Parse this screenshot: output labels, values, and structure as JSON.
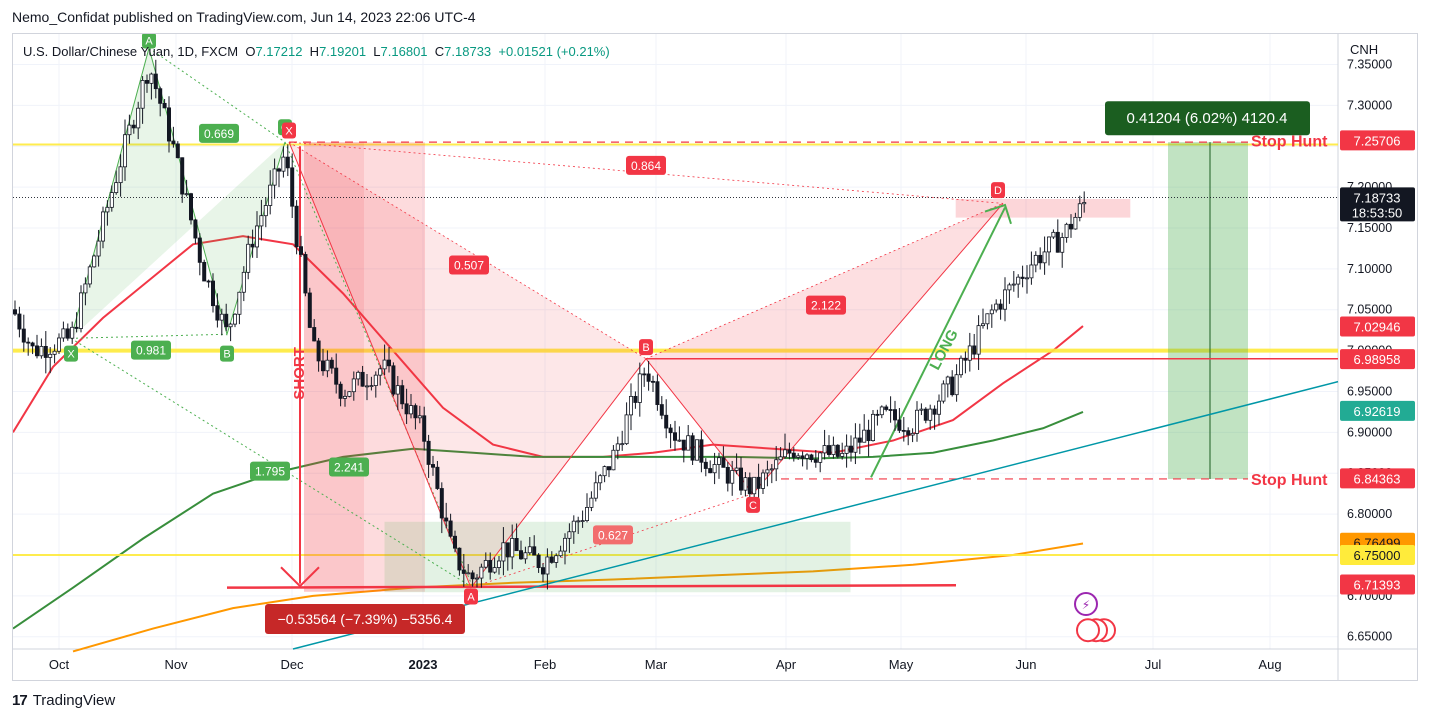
{
  "publisher_line": "Nemo_Confidat published on TradingView.com, Jun 14, 2023 22:06 UTC-4",
  "brand": {
    "logo_glyph": "17",
    "name": "TradingView"
  },
  "legend": {
    "symbol": "U.S. Dollar/Chinese Yuan, 1D, FXCM",
    "open_label": "O",
    "open": "7.17212",
    "high_label": "H",
    "high": "7.19201",
    "low_label": "L",
    "low": "7.16801",
    "close_label": "C",
    "close": "7.18733",
    "change": "+0.01521 (+0.21%)"
  },
  "currency": "CNH",
  "chart_data": {
    "type": "candlestick",
    "x_months": [
      "Oct",
      "Nov",
      "Dec",
      "2023",
      "Feb",
      "Mar",
      "Apr",
      "May",
      "Jun",
      "Jul",
      "Aug"
    ],
    "y_ticks": [
      "6.65000",
      "6.70000",
      "6.75000",
      "6.80000",
      "6.85000",
      "6.90000",
      "6.95000",
      "7.00000",
      "7.05000",
      "7.10000",
      "7.15000",
      "7.20000",
      "7.25000",
      "7.30000",
      "7.35000"
    ],
    "ylim": [
      6.635,
      7.375
    ],
    "price_labels": [
      {
        "value": 7.25706,
        "text": "7.25706",
        "color": "#f23645"
      },
      {
        "value": 7.18733,
        "text": "7.18733",
        "sub": "18:53:50",
        "color": "#131722"
      },
      {
        "value": 7.02946,
        "text": "7.02946",
        "color": "#f23645"
      },
      {
        "value": 6.98958,
        "text": "6.98958",
        "color": "#f23645"
      },
      {
        "value": 6.92619,
        "text": "6.92619",
        "color": "#22ab94"
      },
      {
        "value": 6.84363,
        "text": "6.84363",
        "color": "#f23645"
      },
      {
        "value": 6.76499,
        "text": "6.76499",
        "color": "#ff9800"
      },
      {
        "value": 6.75,
        "text": "6.75000",
        "color": "#ffeb3b"
      },
      {
        "value": 6.71393,
        "text": "6.71393",
        "color": "#f23645"
      }
    ],
    "pattern_points": [
      {
        "name": "X",
        "value": 7.02
      },
      {
        "name": "A",
        "value": 7.37
      },
      {
        "name": "B",
        "value": 7.02
      },
      {
        "name": "C",
        "value": 7.26
      },
      {
        "name": "X",
        "value": 7.26
      },
      {
        "name": "A",
        "value": 6.71
      },
      {
        "name": "B",
        "value": 6.99
      },
      {
        "name": "C",
        "value": 6.825
      },
      {
        "name": "D",
        "value": 7.18
      }
    ],
    "ratios": [
      "0.669",
      "0.981",
      "1.795",
      "2.241",
      "0.864",
      "0.507",
      "2.122",
      "0.627"
    ],
    "annotations": {
      "short": "SHORT",
      "long": "LONG",
      "stop_hunt_top": "Stop Hunt",
      "stop_hunt_bottom": "Stop Hunt",
      "measure_up": "0.41204 (6.02%) 4120.4",
      "measure_down": "−0.53564 (−7.39%) −5356.4"
    },
    "moving_averages": [
      {
        "name": "EMA red",
        "color": "#f23645"
      },
      {
        "name": "EMA green",
        "color": "#388e3c"
      },
      {
        "name": "EMA orange",
        "color": "#ff9800"
      }
    ]
  }
}
